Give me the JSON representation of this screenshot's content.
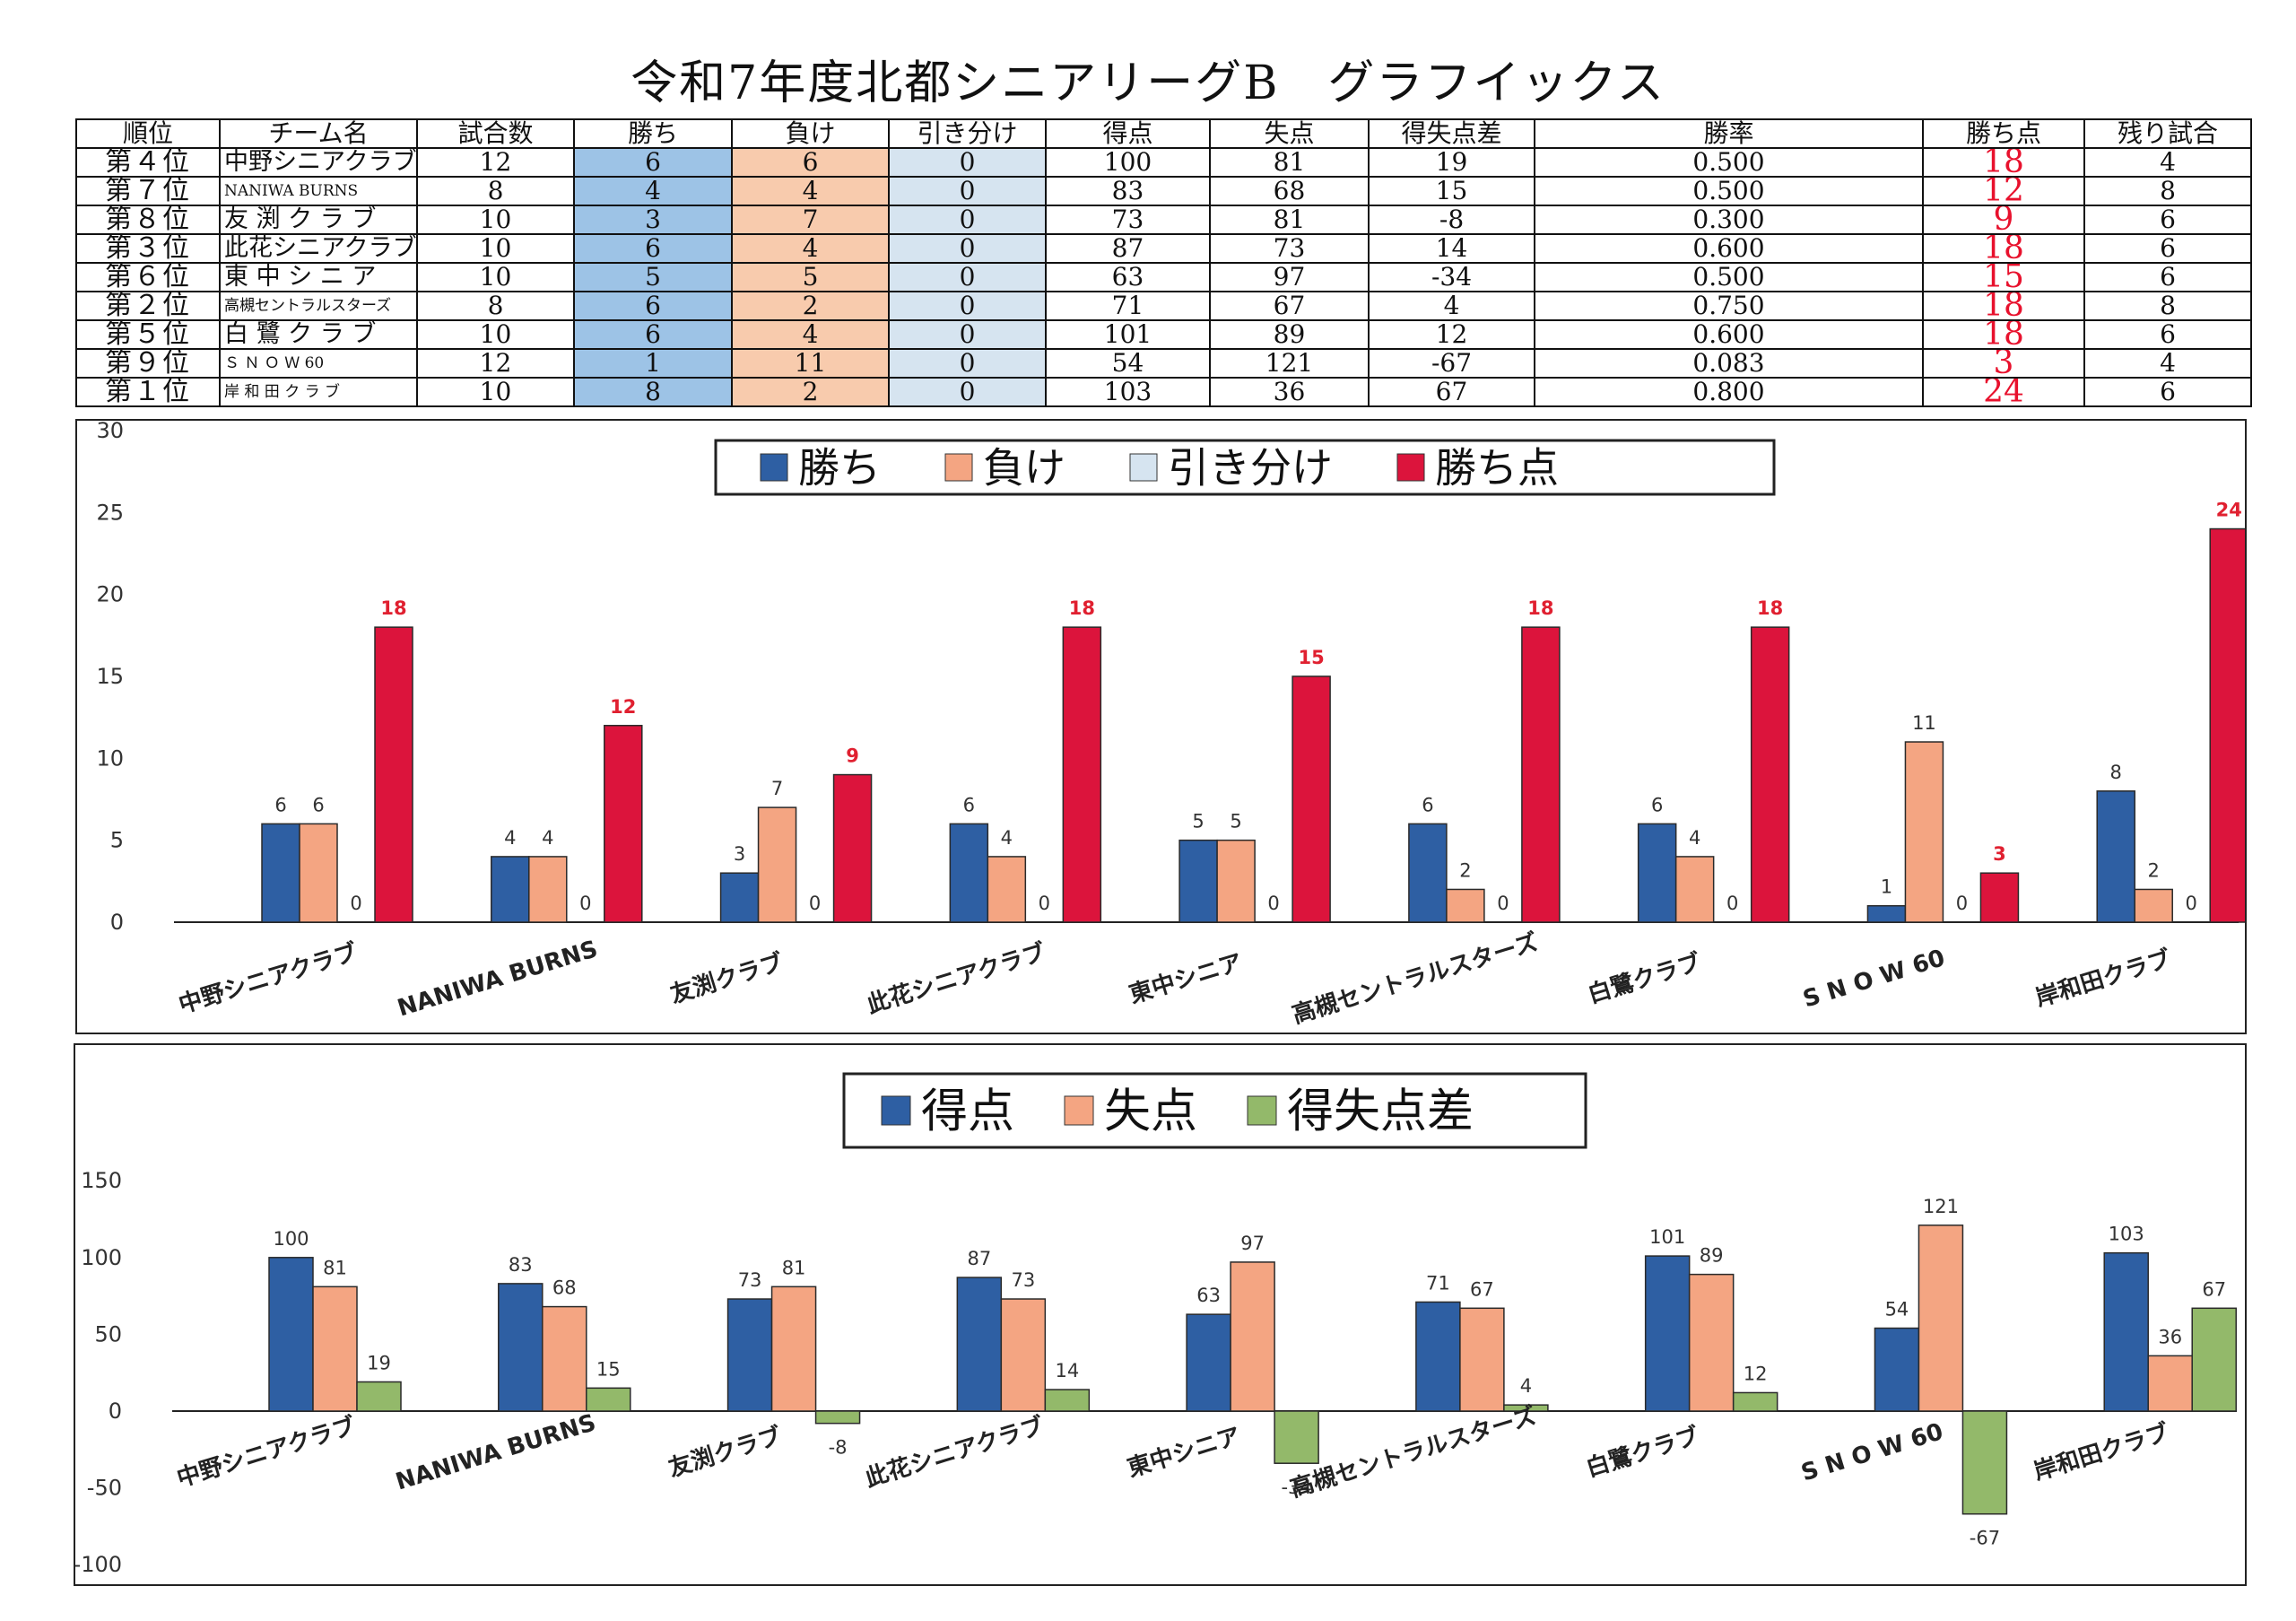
{
  "title": "令和7年度北都シニアリーグB　グラフイックス",
  "table": {
    "headers": [
      "順位",
      "チーム名",
      "試合数",
      "勝ち",
      "負け",
      "引き分け",
      "得点",
      "失点",
      "得失点差",
      "勝率",
      "勝ち点",
      "残り試合"
    ],
    "rows": [
      {
        "rank": "第４位",
        "team": "中野シニアクラブ",
        "games": "12",
        "wins": "6",
        "losses": "6",
        "draws": "0",
        "scored": "100",
        "conceded": "81",
        "diff": "19",
        "rate": "0.500",
        "points": "18",
        "remaining": "4"
      },
      {
        "rank": "第７位",
        "team": "NANIWA BURNS",
        "games": "8",
        "wins": "4",
        "losses": "4",
        "draws": "0",
        "scored": "83",
        "conceded": "68",
        "diff": "15",
        "rate": "0.500",
        "points": "12",
        "remaining": "8"
      },
      {
        "rank": "第８位",
        "team": "友 渕 ク ラ ブ",
        "games": "10",
        "wins": "3",
        "losses": "7",
        "draws": "0",
        "scored": "73",
        "conceded": "81",
        "diff": "-8",
        "rate": "0.300",
        "points": "9",
        "remaining": "6"
      },
      {
        "rank": "第３位",
        "team": "此花シニアクラブ",
        "games": "10",
        "wins": "6",
        "losses": "4",
        "draws": "0",
        "scored": "87",
        "conceded": "73",
        "diff": "14",
        "rate": "0.600",
        "points": "18",
        "remaining": "6"
      },
      {
        "rank": "第６位",
        "team": "東 中 シ ニ ア",
        "games": "10",
        "wins": "5",
        "losses": "5",
        "draws": "0",
        "scored": "63",
        "conceded": "97",
        "diff": "-34",
        "rate": "0.500",
        "points": "15",
        "remaining": "6"
      },
      {
        "rank": "第２位",
        "team": "高槻セントラルスターズ",
        "games": "8",
        "wins": "6",
        "losses": "2",
        "draws": "0",
        "scored": "71",
        "conceded": "67",
        "diff": "4",
        "rate": "0.750",
        "points": "18",
        "remaining": "8"
      },
      {
        "rank": "第５位",
        "team": "白 鷺 ク ラ ブ",
        "games": "10",
        "wins": "6",
        "losses": "4",
        "draws": "0",
        "scored": "101",
        "conceded": "89",
        "diff": "12",
        "rate": "0.600",
        "points": "18",
        "remaining": "6"
      },
      {
        "rank": "第９位",
        "team": "Ｓ Ｎ Ｏ Ｗ 60",
        "games": "12",
        "wins": "1",
        "losses": "11",
        "draws": "0",
        "scored": "54",
        "conceded": "121",
        "diff": "-67",
        "rate": "0.083",
        "points": "3",
        "remaining": "4"
      },
      {
        "rank": "第１位",
        "team": "岸 和 田 ク ラ ブ",
        "games": "10",
        "wins": "8",
        "losses": "2",
        "draws": "0",
        "scored": "103",
        "conceded": "36",
        "diff": "67",
        "rate": "0.800",
        "points": "24",
        "remaining": "6"
      }
    ]
  },
  "chart_data": [
    {
      "type": "bar",
      "categories": [
        "中野シニアクラブ",
        "NANIWA BURNS",
        "友渕クラブ",
        "此花シニアクラブ",
        "東中シニア",
        "高槻セントラルスターズ",
        "白鷺クラブ",
        "ＳＮＯＷ60",
        "岸和田クラブ"
      ],
      "category_labels": [
        "中野シニアクラブ",
        "NANIWA BURNS",
        "友渕クラブ",
        "此花シニアクラブ",
        "東中シニア",
        "高槻セントラルスターズ",
        "白鷺クラブ",
        "S N O W 60",
        "岸和田クラブ"
      ],
      "series": [
        {
          "name": "勝ち",
          "color": "#2e5fa3",
          "label_color": "#333333",
          "values": [
            6,
            4,
            3,
            6,
            5,
            6,
            6,
            1,
            8
          ]
        },
        {
          "name": "負け",
          "color": "#f4a582",
          "label_color": "#333333",
          "values": [
            6,
            4,
            7,
            4,
            5,
            2,
            4,
            11,
            2
          ]
        },
        {
          "name": "引き分け",
          "color": "#d6e4f0",
          "label_color": "#333333",
          "values": [
            0,
            0,
            0,
            0,
            0,
            0,
            0,
            0,
            0
          ]
        },
        {
          "name": "勝ち点",
          "color": "#dc143c",
          "label_color": "#e02030",
          "values": [
            18,
            12,
            9,
            18,
            15,
            18,
            18,
            3,
            24
          ]
        }
      ],
      "ylim": [
        0,
        30
      ],
      "yticks": [
        "0",
        "5",
        "10",
        "15",
        "20",
        "25",
        "30"
      ],
      "legend_position": "top-center",
      "grid": false
    },
    {
      "type": "bar",
      "categories": [
        "中野シニアクラブ",
        "NANIWA BURNS",
        "友渕クラブ",
        "此花シニアクラブ",
        "東中シニア",
        "高槻セントラルスターズ",
        "白鷺クラブ",
        "ＳＮＯＷ60",
        "岸和田クラブ"
      ],
      "category_labels": [
        "中野シニアクラブ",
        "NANIWA BURNS",
        "友渕クラブ",
        "此花シニアクラブ",
        "東中シニア",
        "高槻セントラルスターズ",
        "白鷺クラブ",
        "S N O W 60",
        "岸和田クラブ"
      ],
      "series": [
        {
          "name": "得点",
          "color": "#2e5fa3",
          "label_color": "#333333",
          "values": [
            100,
            83,
            73,
            87,
            63,
            71,
            101,
            54,
            103
          ]
        },
        {
          "name": "失点",
          "color": "#f4a582",
          "label_color": "#333333",
          "values": [
            81,
            68,
            81,
            73,
            97,
            67,
            89,
            121,
            36
          ]
        },
        {
          "name": "得失点差",
          "color": "#93b96a",
          "label_color": "#333333",
          "values": [
            19,
            15,
            -8,
            14,
            -34,
            4,
            12,
            -67,
            67
          ]
        }
      ],
      "ylim": [
        -100,
        150
      ],
      "yticks": [
        "-100",
        "-50",
        "0",
        "50",
        "100",
        "150"
      ],
      "legend_position": "top-center",
      "grid": false
    }
  ]
}
